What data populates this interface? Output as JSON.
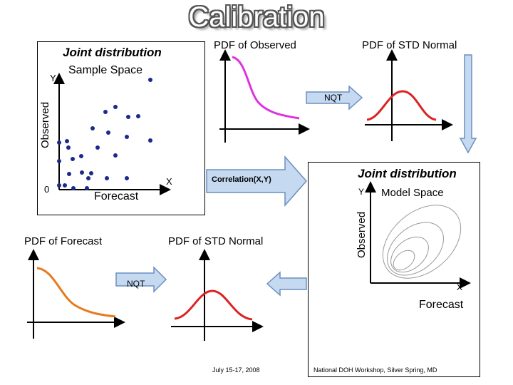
{
  "title": "Calibration",
  "sample_panel": {
    "title": "Joint distribution",
    "subtitle": "Sample Space",
    "y_axis_letter": "Y",
    "y_axis_label": "Observed",
    "x_axis_letter": "X",
    "x_axis_label": "Forecast",
    "origin_label": "0"
  },
  "pdf_observed_label": "PDF of Observed",
  "pdf_std_normal_top_label": "PDF of STD Normal",
  "nqt_top_label": "NQT",
  "correlation_label": "Correlation(X,Y)",
  "pdf_forecast_label": "PDF of Forecast",
  "pdf_std_normal_bottom_label": "PDF of STD Normal",
  "nqt_bottom_label": "NQT",
  "model_panel": {
    "title": "Joint distribution",
    "subtitle": "Model Space",
    "y_axis_letter": "Y",
    "y_axis_label": "Observed",
    "x_axis_letter": "X",
    "x_axis_label": "Forecast"
  },
  "footer_date": "July 15-17, 2008",
  "footer_event": "National DOH Workshop, Silver Spring, MD",
  "colors": {
    "observed_curve": "#dd33dd",
    "normal_curve": "#dd2222",
    "forecast_curve": "#e87a1e",
    "arrow_fill": "#c5d9f1",
    "arrow_stroke": "#6b8fbf",
    "dot_fill": "#1a2a8c"
  }
}
